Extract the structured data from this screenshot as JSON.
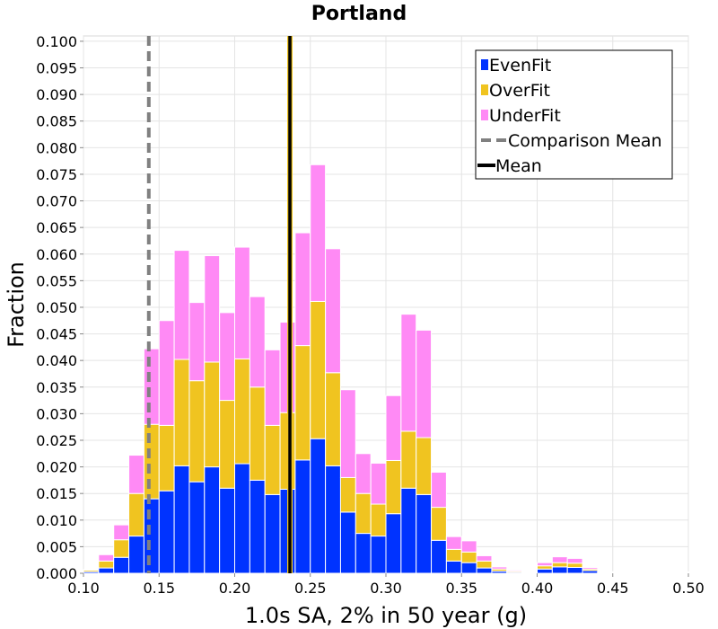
{
  "chart_data": {
    "type": "bar",
    "stacked": true,
    "title": "Portland",
    "xlabel": "1.0s SA, 2% in 50 year (g)",
    "ylabel": "Fraction",
    "xlim": [
      0.1,
      0.5
    ],
    "ylim": [
      0.0,
      0.101
    ],
    "x_ticks": [
      "0.10",
      "0.15",
      "0.20",
      "0.25",
      "0.30",
      "0.35",
      "0.40",
      "0.45",
      "0.50"
    ],
    "y_ticks": [
      "0.000",
      "0.005",
      "0.010",
      "0.015",
      "0.020",
      "0.025",
      "0.030",
      "0.035",
      "0.040",
      "0.045",
      "0.050",
      "0.055",
      "0.060",
      "0.065",
      "0.070",
      "0.075",
      "0.080",
      "0.085",
      "0.090",
      "0.095",
      "0.100"
    ],
    "grid": true,
    "legend_position": "top-right",
    "bin_width": 0.01,
    "bin_starts": [
      0.1,
      0.11,
      0.12,
      0.13,
      0.14,
      0.15,
      0.16,
      0.17,
      0.18,
      0.19,
      0.2,
      0.21,
      0.22,
      0.23,
      0.24,
      0.25,
      0.26,
      0.27,
      0.28,
      0.29,
      0.3,
      0.31,
      0.32,
      0.33,
      0.34,
      0.35,
      0.36,
      0.37,
      0.38,
      0.39,
      0.4,
      0.41,
      0.42,
      0.43,
      0.44,
      0.45,
      0.46,
      0.47,
      0.48,
      0.49
    ],
    "series": [
      {
        "name": "EvenFit",
        "color": "#0033ff",
        "values": [
          0.0003,
          0.001,
          0.003,
          0.007,
          0.014,
          0.0155,
          0.0202,
          0.0172,
          0.02,
          0.016,
          0.0206,
          0.0175,
          0.0148,
          0.0158,
          0.0213,
          0.0253,
          0.0202,
          0.0115,
          0.0075,
          0.007,
          0.0112,
          0.016,
          0.0148,
          0.0062,
          0.0023,
          0.002,
          0.001,
          0.0004,
          0.0002,
          0.0001,
          0.0008,
          0.0012,
          0.0011,
          0.0005,
          0.0001,
          0.0001,
          0.0001,
          0.0001,
          0.0001,
          0.0001
        ]
      },
      {
        "name": "OverFit",
        "color": "#f0c420",
        "values": [
          0.0003,
          0.0013,
          0.0033,
          0.008,
          0.014,
          0.0123,
          0.02,
          0.019,
          0.0197,
          0.0165,
          0.0197,
          0.0175,
          0.013,
          0.0144,
          0.0215,
          0.0258,
          0.0175,
          0.0065,
          0.0075,
          0.006,
          0.01,
          0.0107,
          0.0107,
          0.0062,
          0.0022,
          0.002,
          0.0013,
          0.0004,
          0.0002,
          0.0001,
          0.0006,
          0.0008,
          0.0008,
          0.0003,
          0.0001,
          0.0001,
          0.0001,
          0.0001,
          0.0001,
          0.0001
        ]
      },
      {
        "name": "UnderFit",
        "color": "#ff8af5",
        "values": [
          0.0001,
          0.0012,
          0.0028,
          0.0072,
          0.0142,
          0.0197,
          0.0205,
          0.0147,
          0.02,
          0.0165,
          0.021,
          0.017,
          0.0142,
          0.017,
          0.0212,
          0.0257,
          0.0233,
          0.0165,
          0.0075,
          0.0077,
          0.0122,
          0.022,
          0.0202,
          0.0066,
          0.0024,
          0.0021,
          0.001,
          0.0004,
          0.0002,
          0.0001,
          0.0006,
          0.0011,
          0.0009,
          0.0003,
          0.0001,
          0.0001,
          0.0001,
          0.0001,
          0.0001,
          0.0001
        ]
      }
    ],
    "vlines": [
      {
        "name": "Comparison Mean",
        "x": 0.1432,
        "color": "#808080",
        "style": "dashed"
      },
      {
        "name": "Mean",
        "x": 0.2365,
        "color": "#000000",
        "style": "solid"
      }
    ]
  }
}
